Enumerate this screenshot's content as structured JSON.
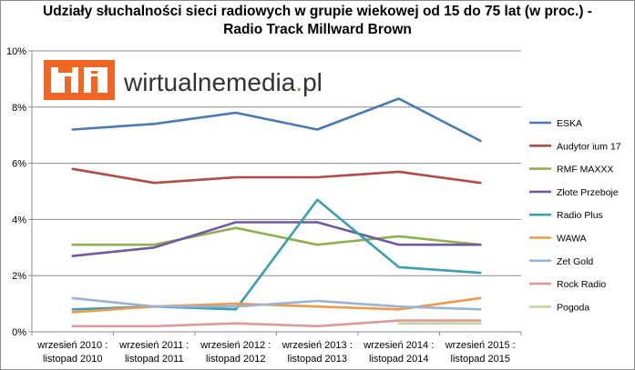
{
  "chart_data": {
    "type": "line",
    "title_line1": "Udziały słuchalności sieci radiowych w grupie wiekowej od 15 do 75 lat (w proc.) -",
    "title_line2": "Radio Track Millward Brown",
    "categories": [
      [
        "wrzesień 2010 :",
        "listopad 2010"
      ],
      [
        "wrzesień 2011 :",
        "listopad 2011"
      ],
      [
        "wrzesień 2012 :",
        "listopad 2012"
      ],
      [
        "wrzesień 2013 :",
        "listopad 2013"
      ],
      [
        "wrzesień 2014 :",
        "listopad 2014"
      ],
      [
        "wrzesień 2015 :",
        "listopad 2015"
      ]
    ],
    "ylim": [
      0,
      10
    ],
    "yticks": [
      0,
      2,
      4,
      6,
      8,
      10
    ],
    "ytick_labels": [
      "0%",
      "2%",
      "4%",
      "6%",
      "8%",
      "10%"
    ],
    "grid": true,
    "legend_position": "right",
    "series": [
      {
        "name": "ESKA",
        "color": "#4a7ab5",
        "values": [
          7.2,
          7.4,
          7.8,
          7.2,
          8.3,
          6.8
        ]
      },
      {
        "name": "Audytor ium 17",
        "color": "#b24a46",
        "values": [
          5.8,
          5.3,
          5.5,
          5.5,
          5.7,
          5.3
        ]
      },
      {
        "name": "RMF MAXXX",
        "color": "#8fb04d",
        "values": [
          3.1,
          3.1,
          3.7,
          3.1,
          3.4,
          3.1
        ]
      },
      {
        "name": "Złote Przeboje",
        "color": "#7258a0",
        "values": [
          2.7,
          3.0,
          3.9,
          3.9,
          3.1,
          3.1
        ]
      },
      {
        "name": "Radio Plus",
        "color": "#3c9fb0",
        "values": [
          0.8,
          0.9,
          0.8,
          4.7,
          2.3,
          2.1
        ]
      },
      {
        "name": "WAWA",
        "color": "#f09a48",
        "values": [
          0.7,
          0.9,
          1.0,
          0.9,
          0.8,
          1.2
        ]
      },
      {
        "name": "Zet Gold",
        "color": "#97b3d8",
        "values": [
          1.2,
          0.9,
          0.9,
          1.1,
          0.9,
          0.8
        ]
      },
      {
        "name": "Rock Radio",
        "color": "#dc9a99",
        "values": [
          0.2,
          0.2,
          0.3,
          0.2,
          0.4,
          0.4
        ]
      },
      {
        "name": "Pogoda",
        "color": "#c4d6a0",
        "values": [
          null,
          null,
          null,
          null,
          0.3,
          0.3
        ]
      }
    ]
  },
  "watermark": {
    "brand_text": "wirtualnemedia.pl",
    "brand_color": "#f26522"
  }
}
